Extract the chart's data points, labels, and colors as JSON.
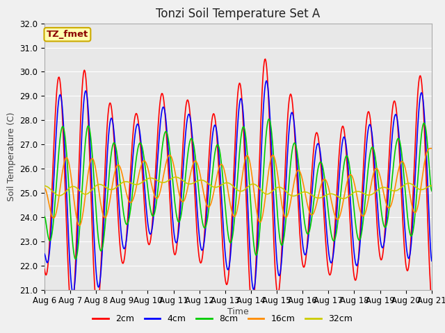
{
  "title": "Tonzi Soil Temperature Set A",
  "xlabel": "Time",
  "ylabel": "Soil Temperature (C)",
  "annotation": "TZ_fmet",
  "ylim": [
    21.0,
    32.0
  ],
  "yticks": [
    21.0,
    22.0,
    23.0,
    24.0,
    25.0,
    26.0,
    27.0,
    28.0,
    29.0,
    30.0,
    31.0,
    32.0
  ],
  "xtick_labels": [
    "Aug 6",
    "Aug 7",
    "Aug 8",
    "Aug 9",
    "Aug 10",
    "Aug 11",
    "Aug 12",
    "Aug 13",
    "Aug 14",
    "Aug 15",
    "Aug 16",
    "Aug 17",
    "Aug 18",
    "Aug 19",
    "Aug 20",
    "Aug 21"
  ],
  "series": [
    {
      "label": "2cm",
      "color": "#ff0000"
    },
    {
      "label": "4cm",
      "color": "#0000ff"
    },
    {
      "label": "8cm",
      "color": "#00cc00"
    },
    {
      "label": "16cm",
      "color": "#ff8c00"
    },
    {
      "label": "32cm",
      "color": "#cccc00"
    }
  ],
  "plot_bg_color": "#e8e8e8",
  "grid_color": "#ffffff",
  "fig_bg_color": "#f0f0f0",
  "linewidth": 1.2,
  "title_fontsize": 12,
  "label_fontsize": 9,
  "tick_fontsize": 8.5,
  "legend_fontsize": 9
}
